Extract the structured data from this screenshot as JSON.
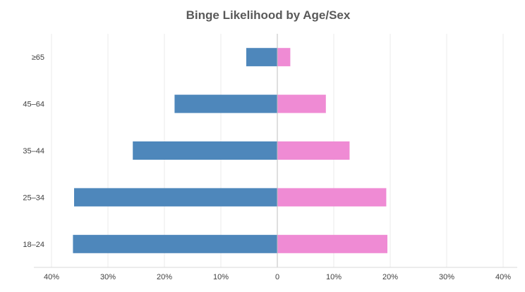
{
  "chart_data": {
    "type": "bar",
    "orientation": "horizontal-diverging",
    "title": "Binge Likelihood by Age/Sex",
    "categories": [
      "18–24",
      "25–34",
      "35–44",
      "45–64",
      "≥65"
    ],
    "series": [
      {
        "values": [
          36.2,
          36.0,
          25.6,
          18.2,
          5.5
        ],
        "direction": "left",
        "color": "#4e87bb"
      },
      {
        "values": [
          19.5,
          19.3,
          12.8,
          8.6,
          2.3
        ],
        "direction": "right",
        "color": "#ef8bd4"
      }
    ],
    "xlim": [
      -40,
      40
    ],
    "x_ticks": [
      -40,
      -30,
      -20,
      -10,
      0,
      10,
      20,
      30,
      40
    ],
    "x_tick_labels": [
      "40%",
      "30%",
      "20%",
      "10%",
      "0",
      "10%",
      "20%",
      "30%",
      "40%"
    ],
    "grid": true,
    "legend": "none",
    "colors": {
      "grid": "#ebebeb",
      "zero_line": "#bfbfbf",
      "axis": "#d9d9d9"
    }
  }
}
